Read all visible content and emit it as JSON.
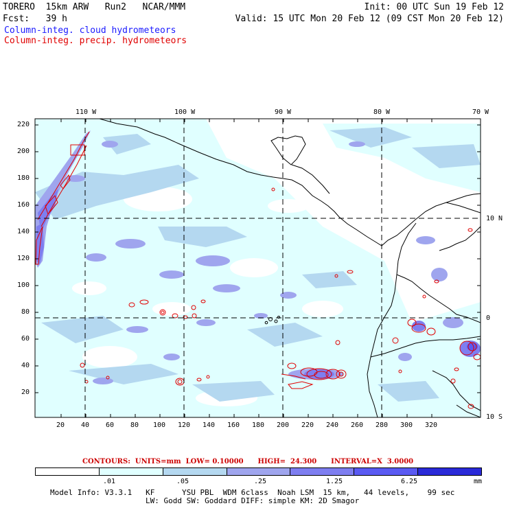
{
  "header": {
    "model": "TORERO  15km ARW   Run2   NCAR/MMM",
    "init": "Init: 00 UTC Sun 19 Feb 12",
    "fcst": "Fcst:   39 h",
    "valid": "Valid: 15 UTC Mon 20 Feb 12 (09 CST Mon 20 Feb 12)",
    "field1": "Column-integ. cloud hydrometeors",
    "field2": "Column-integ. precip. hydrometeors",
    "field1_color": "#1a1aff",
    "field2_color": "#e00000"
  },
  "map": {
    "lon_labels": [
      "110 W",
      "100 W",
      "90 W",
      "80 W",
      "70 W"
    ],
    "lat_labels": [
      "10 N",
      "0",
      "10 S"
    ],
    "y_ticks": [
      "220",
      "200",
      "180",
      "160",
      "140",
      "120",
      "100",
      "80",
      "60",
      "40",
      "20"
    ],
    "x_ticks": [
      "20",
      "40",
      "60",
      "80",
      "100",
      "120",
      "140",
      "160",
      "180",
      "200",
      "220",
      "240",
      "260",
      "280",
      "300",
      "320"
    ]
  },
  "contours": {
    "text": "CONTOURS:  UNITS=mm  LOW= 0.10000      HIGH=  24.300      INTERVAL=X  3.0000"
  },
  "colorbar": {
    "labels": [
      ".01",
      ".05",
      ".25",
      "1.25",
      "6.25"
    ],
    "unit": "mm",
    "colors": [
      "#ffffff",
      "#e0ffff",
      "#b4d8f0",
      "#9fa5ee",
      "#7e7ef0",
      "#5a5af2",
      "#2a2ad8"
    ]
  },
  "footer": {
    "line1": "Model Info: V3.3.1   KF      YSU PBL  WDM 6class  Noah LSM  15 km,   44 levels,    99 sec",
    "line2": "LW: Godd SW: Goddard DIFF: simple KM: 2D Smagor"
  }
}
